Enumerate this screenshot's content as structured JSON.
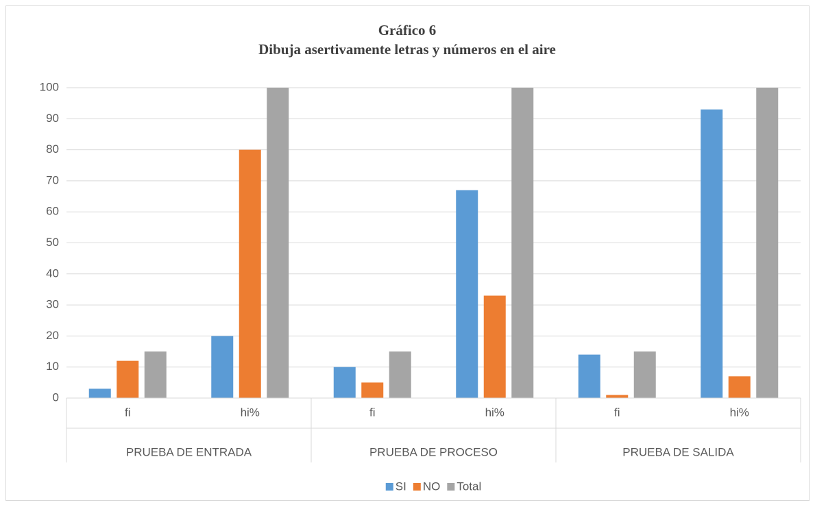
{
  "chart_data": {
    "type": "bar",
    "title": "Gráfico 6",
    "subtitle": "Dibuja asertivamente letras y números en el aire",
    "categories": [
      "fi",
      "hi%",
      "fi",
      "hi%",
      "fi",
      "hi%"
    ],
    "groups": [
      "PRUEBA DE ENTRADA",
      "PRUEBA DE PROCESO",
      "PRUEBA DE SALIDA"
    ],
    "series": [
      {
        "name": "SI",
        "color": "#5b9bd5",
        "values": [
          3,
          20,
          10,
          67,
          14,
          93
        ]
      },
      {
        "name": "NO",
        "color": "#ed7d31",
        "values": [
          12,
          80,
          5,
          33,
          1,
          7
        ]
      },
      {
        "name": "Total",
        "color": "#a5a5a5",
        "values": [
          15,
          100,
          15,
          100,
          15,
          100
        ]
      }
    ],
    "ylim": [
      0,
      100
    ],
    "yticks": [
      0,
      10,
      20,
      30,
      40,
      50,
      60,
      70,
      80,
      90,
      100
    ],
    "grid": true,
    "legend": "bottom"
  }
}
